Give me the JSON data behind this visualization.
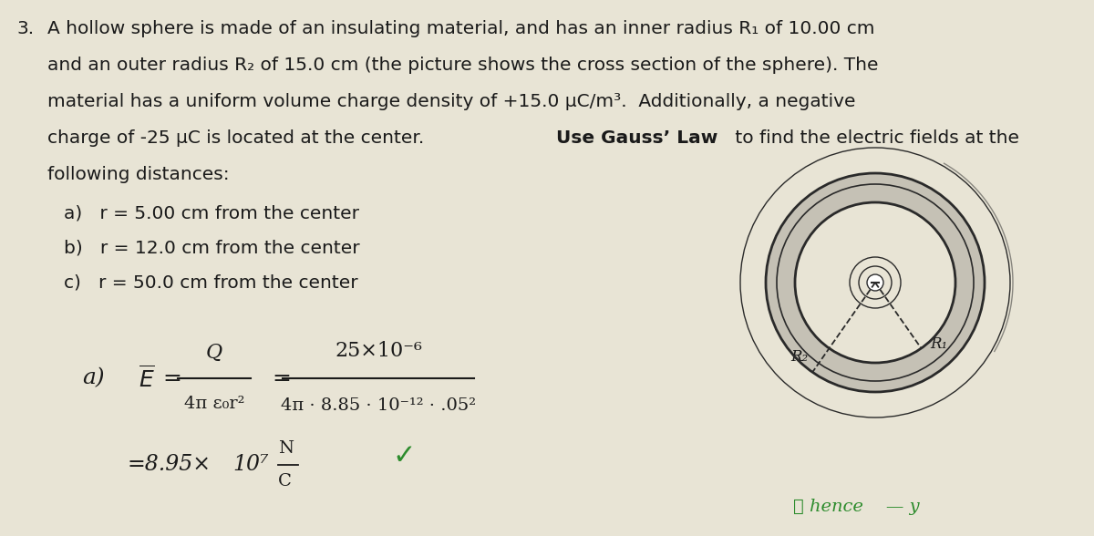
{
  "bg_color": "#e8e4d5",
  "text_color": "#1a1a1a",
  "problem_number": "3.",
  "line1": "A hollow sphere is made of an insulating material, and has an inner radius R₁ of 10.00 cm",
  "line2": "and an outer radius R₂ of 15.0 cm (the picture shows the cross section of the sphere). The",
  "line3": "material has a uniform volume charge density of +15.0 μC/m³.  Additionally, a negative",
  "line4_before": "charge of -25 μC is located at the center. ",
  "line4_bold": "Use Gauss’ Law",
  "line4_after": " to find the electric fields at the",
  "line5": "following distances:",
  "sub_a": "a)   r = 5.00 cm from the center",
  "sub_b": "b)   r = 12.0 cm from the center",
  "sub_c": "c)   r = 50.0 cm from the center",
  "fill_color": "#c5c1b5",
  "line_color": "#2a2a2a",
  "checkmark_color": "#2d8c2d",
  "green_color": "#2d8c2d",
  "bottom_right_text": "ℓ hence    — y",
  "R2_label": "R₂",
  "R1_label": "R₁"
}
